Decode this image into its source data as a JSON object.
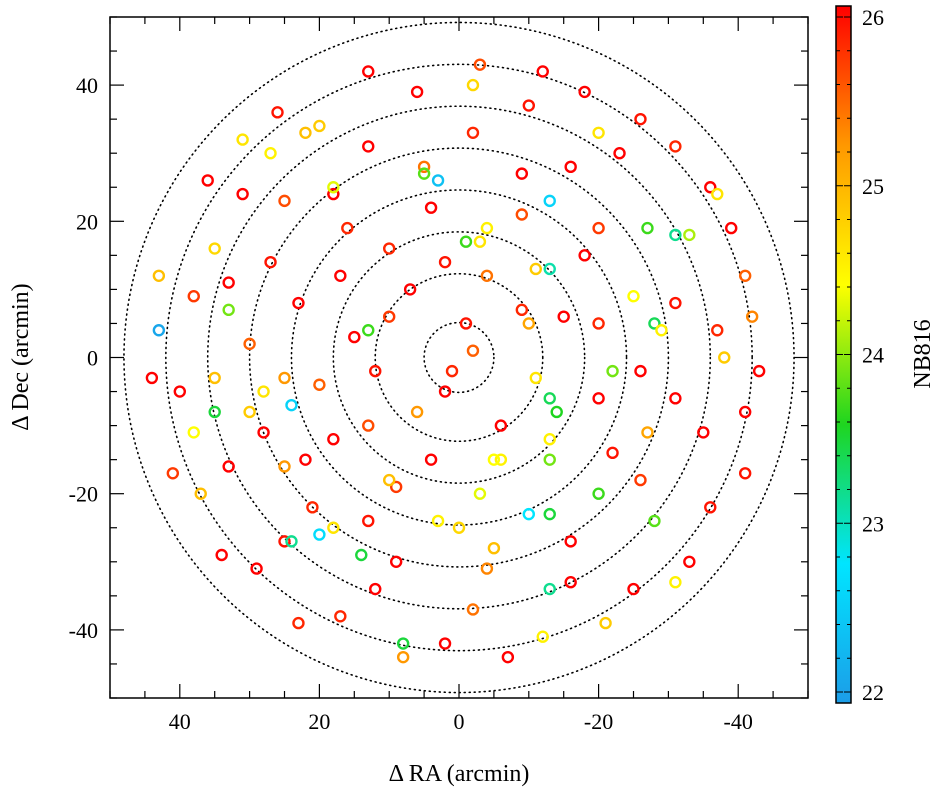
{
  "chart_data": {
    "type": "scatter",
    "title": "",
    "xlabel": "Δ RA (arcmin)",
    "ylabel": "Δ Dec (arcmin)",
    "xlim": [
      50,
      -50
    ],
    "ylim": [
      -50,
      50
    ],
    "xticks": [
      40,
      20,
      0,
      -20,
      -40
    ],
    "yticks": [
      40,
      20,
      0,
      -20,
      -40
    ],
    "x_tick_labels": [
      "40",
      "20",
      "0",
      "-20",
      "-40"
    ],
    "y_tick_labels": [
      "40",
      "20",
      "0",
      "-20",
      "-40"
    ],
    "rings_radii": [
      5,
      12,
      18,
      24,
      30,
      36,
      42,
      48
    ],
    "rings_style": "dotted",
    "colorbar": {
      "label": "NB816",
      "range": [
        22,
        26
      ],
      "ticks": [
        22,
        23,
        24,
        25,
        26
      ],
      "tick_labels": [
        "22",
        "23",
        "24",
        "25",
        "26"
      ],
      "colormap": [
        "#1c9de8",
        "#00e5ff",
        "#1fd51f",
        "#ffff00",
        "#ff9800",
        "#ff0000"
      ]
    },
    "marker": "open-circle",
    "points": [
      {
        "x": -1,
        "y": 5,
        "m": 25.9
      },
      {
        "x": 1,
        "y": -2,
        "m": 25.8
      },
      {
        "x": 2,
        "y": -5,
        "m": 26
      },
      {
        "x": -2,
        "y": 1,
        "m": 25.5
      },
      {
        "x": 7,
        "y": 10,
        "m": 26
      },
      {
        "x": 10,
        "y": 6,
        "m": 25.7
      },
      {
        "x": 12,
        "y": -2,
        "m": 25.9
      },
      {
        "x": 6,
        "y": -8,
        "m": 25.2
      },
      {
        "x": -6,
        "y": -10,
        "m": 26
      },
      {
        "x": -11,
        "y": -3,
        "m": 24.6
      },
      {
        "x": -9,
        "y": 7,
        "m": 25.8
      },
      {
        "x": -4,
        "y": 12,
        "m": 25.4
      },
      {
        "x": 2,
        "y": 14,
        "m": 25.9
      },
      {
        "x": 15,
        "y": 3,
        "m": 26
      },
      {
        "x": 13,
        "y": -10,
        "m": 25.6
      },
      {
        "x": 4,
        "y": -15,
        "m": 26
      },
      {
        "x": -6,
        "y": -15,
        "m": 24.5
      },
      {
        "x": -14,
        "y": -8,
        "m": 23.6
      },
      {
        "x": -15,
        "y": 6,
        "m": 26
      },
      {
        "x": -11,
        "y": 13,
        "m": 24.8
      },
      {
        "x": -3,
        "y": 17,
        "m": 24.6
      },
      {
        "x": 10,
        "y": 16,
        "m": 25.8
      },
      {
        "x": 17,
        "y": 12,
        "m": 26
      },
      {
        "x": 20,
        "y": -4,
        "m": 25.5
      },
      {
        "x": 18,
        "y": -12,
        "m": 26
      },
      {
        "x": 9,
        "y": -19,
        "m": 25.7
      },
      {
        "x": -3,
        "y": -20,
        "m": 24.3
      },
      {
        "x": -13,
        "y": -15,
        "m": 23.9
      },
      {
        "x": -20,
        "y": -6,
        "m": 26
      },
      {
        "x": -20,
        "y": 5,
        "m": 25.8
      },
      {
        "x": -18,
        "y": 15,
        "m": 26
      },
      {
        "x": -9,
        "y": 21,
        "m": 25.6
      },
      {
        "x": 4,
        "y": 22,
        "m": 26
      },
      {
        "x": 16,
        "y": 19,
        "m": 25.8
      },
      {
        "x": 23,
        "y": 8,
        "m": 26
      },
      {
        "x": 25,
        "y": -3,
        "m": 25.2
      },
      {
        "x": 22,
        "y": -15,
        "m": 26
      },
      {
        "x": 13,
        "y": -24,
        "m": 25.9
      },
      {
        "x": 0,
        "y": -25,
        "m": 24.7
      },
      {
        "x": -13,
        "y": -23,
        "m": 23.5
      },
      {
        "x": -22,
        "y": -14,
        "m": 25.9
      },
      {
        "x": -26,
        "y": -2,
        "m": 26
      },
      {
        "x": -25,
        "y": 9,
        "m": 24.4
      },
      {
        "x": -20,
        "y": 19,
        "m": 25.7
      },
      {
        "x": -9,
        "y": 27,
        "m": 26
      },
      {
        "x": 5,
        "y": 28,
        "m": 25.4
      },
      {
        "x": 18,
        "y": 24,
        "m": 26
      },
      {
        "x": 27,
        "y": 14,
        "m": 25.9
      },
      {
        "x": 30,
        "y": 2,
        "m": 25.5
      },
      {
        "x": 28,
        "y": -11,
        "m": 26
      },
      {
        "x": 21,
        "y": -22,
        "m": 25.8
      },
      {
        "x": 9,
        "y": -30,
        "m": 26
      },
      {
        "x": -4,
        "y": -31,
        "m": 25.3
      },
      {
        "x": -16,
        "y": -27,
        "m": 26
      },
      {
        "x": -26,
        "y": -18,
        "m": 25.7
      },
      {
        "x": -31,
        "y": -6,
        "m": 26
      },
      {
        "x": -31,
        "y": 8,
        "m": 25.9
      },
      {
        "x": -27,
        "y": 19,
        "m": 23.7
      },
      {
        "x": -16,
        "y": 28,
        "m": 26
      },
      {
        "x": -2,
        "y": 33,
        "m": 25.8
      },
      {
        "x": 13,
        "y": 31,
        "m": 26
      },
      {
        "x": 25,
        "y": 23,
        "m": 25.6
      },
      {
        "x": 33,
        "y": 11,
        "m": 26
      },
      {
        "x": 35,
        "y": -3,
        "m": 24.9
      },
      {
        "x": 33,
        "y": -16,
        "m": 26
      },
      {
        "x": 25,
        "y": -27,
        "m": 25.9
      },
      {
        "x": 12,
        "y": -34,
        "m": 26
      },
      {
        "x": -2,
        "y": -37,
        "m": 25.4
      },
      {
        "x": -16,
        "y": -33,
        "m": 26
      },
      {
        "x": -28,
        "y": -24,
        "m": 23.8
      },
      {
        "x": -35,
        "y": -11,
        "m": 26
      },
      {
        "x": -37,
        "y": 4,
        "m": 25.8
      },
      {
        "x": -33,
        "y": 18,
        "m": 24.1
      },
      {
        "x": -23,
        "y": 30,
        "m": 26
      },
      {
        "x": -10,
        "y": 37,
        "m": 25.9
      },
      {
        "x": 6,
        "y": 39,
        "m": 26
      },
      {
        "x": 20,
        "y": 34,
        "m": 24.8
      },
      {
        "x": 31,
        "y": 24,
        "m": 26
      },
      {
        "x": 38,
        "y": 9,
        "m": 25.7
      },
      {
        "x": 40,
        "y": -5,
        "m": 26
      },
      {
        "x": 37,
        "y": -20,
        "m": 24.9
      },
      {
        "x": 29,
        "y": -31,
        "m": 26
      },
      {
        "x": 17,
        "y": -38,
        "m": 25.8
      },
      {
        "x": 2,
        "y": -42,
        "m": 26
      },
      {
        "x": -12,
        "y": -41,
        "m": 24.5
      },
      {
        "x": -25,
        "y": -34,
        "m": 26
      },
      {
        "x": -36,
        "y": -22,
        "m": 25.9
      },
      {
        "x": -41,
        "y": -8,
        "m": 26
      },
      {
        "x": -42,
        "y": 6,
        "m": 25.3
      },
      {
        "x": -39,
        "y": 19,
        "m": 26
      },
      {
        "x": -31,
        "y": 31,
        "m": 25.8
      },
      {
        "x": -18,
        "y": 39,
        "m": 26
      },
      {
        "x": -3,
        "y": 43,
        "m": 25.6
      },
      {
        "x": 13,
        "y": 42,
        "m": 26
      },
      {
        "x": 26,
        "y": 36,
        "m": 25.9
      },
      {
        "x": 36,
        "y": 26,
        "m": 26
      },
      {
        "x": 43,
        "y": 12,
        "m": 24.9
      },
      {
        "x": 44,
        "y": -3,
        "m": 26
      },
      {
        "x": 41,
        "y": -17,
        "m": 25.7
      },
      {
        "x": 34,
        "y": -29,
        "m": 26
      },
      {
        "x": 23,
        "y": -39,
        "m": 25.8
      },
      {
        "x": 8,
        "y": -44,
        "m": 25.2
      },
      {
        "x": -7,
        "y": -44,
        "m": 26
      },
      {
        "x": -21,
        "y": -39,
        "m": 24.8
      },
      {
        "x": -33,
        "y": -30,
        "m": 26
      },
      {
        "x": -41,
        "y": -17,
        "m": 25.9
      },
      {
        "x": -43,
        "y": -2,
        "m": 26
      },
      {
        "x": -41,
        "y": 12,
        "m": 25.5
      },
      {
        "x": -36,
        "y": 25,
        "m": 26
      },
      {
        "x": -26,
        "y": 35,
        "m": 25.9
      },
      {
        "x": -12,
        "y": 42,
        "m": 26
      },
      {
        "x": 43,
        "y": 4,
        "m": 22.1
      },
      {
        "x": 3,
        "y": 26,
        "m": 22.4
      },
      {
        "x": -13,
        "y": 23,
        "m": 22.6
      },
      {
        "x": -31,
        "y": 18,
        "m": 23.2
      },
      {
        "x": -10,
        "y": -23,
        "m": 22.8
      },
      {
        "x": 20,
        "y": -26,
        "m": 22.7
      },
      {
        "x": 24,
        "y": -7,
        "m": 22.6
      },
      {
        "x": 24,
        "y": -27,
        "m": 23.2
      },
      {
        "x": 14,
        "y": -29,
        "m": 23.5
      },
      {
        "x": -13,
        "y": 13,
        "m": 23.1
      },
      {
        "x": -13,
        "y": -6,
        "m": 23.4
      },
      {
        "x": 5,
        "y": 27,
        "m": 23.8
      },
      {
        "x": -28,
        "y": 5,
        "m": 23.4
      },
      {
        "x": -20,
        "y": -20,
        "m": 23.7
      },
      {
        "x": -13,
        "y": -34,
        "m": 23.2
      },
      {
        "x": 35,
        "y": -8,
        "m": 23.5
      },
      {
        "x": 13,
        "y": 4,
        "m": 23.7
      },
      {
        "x": 8,
        "y": -42,
        "m": 23.5
      },
      {
        "x": 33,
        "y": 7,
        "m": 23.9
      },
      {
        "x": -22,
        "y": -2,
        "m": 23.9
      },
      {
        "x": -1,
        "y": 17,
        "m": 23.7
      },
      {
        "x": 18,
        "y": 25,
        "m": 24.3
      },
      {
        "x": 27,
        "y": 30,
        "m": 24.5
      },
      {
        "x": 31,
        "y": 32,
        "m": 24.6
      },
      {
        "x": -4,
        "y": 19,
        "m": 24.5
      },
      {
        "x": -37,
        "y": 24,
        "m": 24.6
      },
      {
        "x": -29,
        "y": 4,
        "m": 24.5
      },
      {
        "x": -31,
        "y": -33,
        "m": 24.5
      },
      {
        "x": -5,
        "y": -15,
        "m": 24.4
      },
      {
        "x": 3,
        "y": -24,
        "m": 24.5
      },
      {
        "x": 18,
        "y": -25,
        "m": 24.6
      },
      {
        "x": 28,
        "y": -5,
        "m": 24.6
      },
      {
        "x": 35,
        "y": 16,
        "m": 24.7
      },
      {
        "x": 38,
        "y": -11,
        "m": 24.4
      },
      {
        "x": -20,
        "y": 33,
        "m": 24.6
      },
      {
        "x": -2,
        "y": 40,
        "m": 24.7
      },
      {
        "x": -13,
        "y": -12,
        "m": 24.5
      },
      {
        "x": -38,
        "y": 0,
        "m": 24.8
      },
      {
        "x": 22,
        "y": 33,
        "m": 24.9
      },
      {
        "x": 30,
        "y": -8,
        "m": 24.8
      },
      {
        "x": -5,
        "y": -28,
        "m": 24.9
      },
      {
        "x": 10,
        "y": -18,
        "m": 24.9
      },
      {
        "x": -27,
        "y": -11,
        "m": 25.1
      },
      {
        "x": -10,
        "y": 5,
        "m": 25.1
      },
      {
        "x": 25,
        "y": -16,
        "m": 25.2
      }
    ]
  }
}
